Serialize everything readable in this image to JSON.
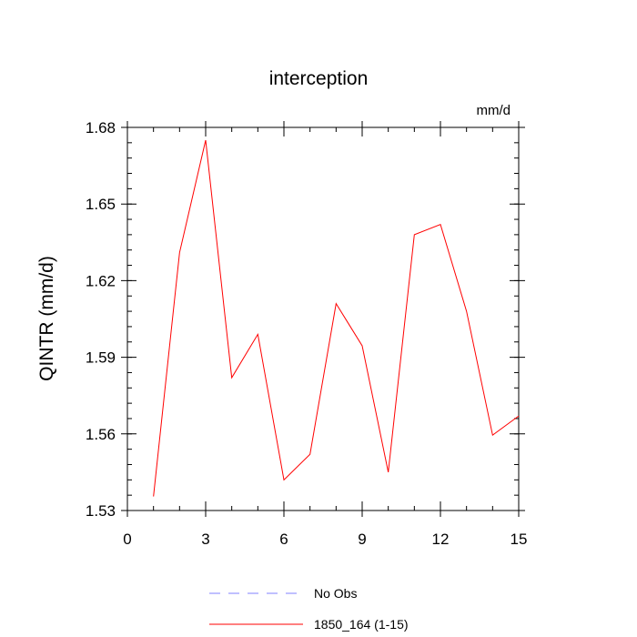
{
  "chart_data": {
    "type": "line",
    "title": "interception",
    "units_label": "mm/d",
    "ylabel": "QINTR  (mm/d)",
    "xlabel": "",
    "xlim": [
      0,
      15
    ],
    "ylim": [
      1.53,
      1.68
    ],
    "xticks": [
      0,
      3,
      6,
      9,
      12,
      15
    ],
    "xtick_labels": [
      "0",
      "3",
      "6",
      "9",
      "12",
      "15"
    ],
    "yticks": [
      1.53,
      1.56,
      1.59,
      1.62,
      1.65,
      1.68
    ],
    "ytick_labels": [
      "1.53",
      "1.56",
      "1.59",
      "1.62",
      "1.65",
      "1.68"
    ],
    "grid": false,
    "legend_position": "bottom",
    "series": [
      {
        "name": "1850_164 (1-15)",
        "color": "#ff0000",
        "style": "solid",
        "x": [
          1,
          2,
          3,
          4,
          5,
          6,
          7,
          8,
          9,
          10,
          11,
          12,
          13,
          14,
          15
        ],
        "y": [
          1.5355,
          1.631,
          1.675,
          1.582,
          1.599,
          1.542,
          1.552,
          1.611,
          1.5945,
          1.545,
          1.638,
          1.642,
          1.608,
          1.5595,
          1.567
        ]
      }
    ],
    "legend": [
      {
        "label": "No Obs",
        "color": "#8080ff",
        "style": "dashed"
      },
      {
        "label": "1850_164 (1-15)",
        "color": "#ff0000",
        "style": "solid"
      }
    ]
  }
}
